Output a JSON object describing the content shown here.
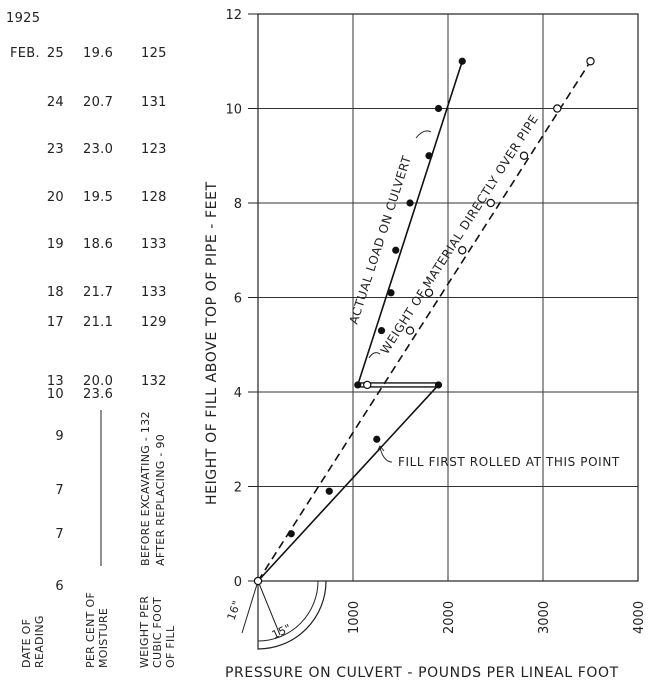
{
  "chart_data": {
    "type": "line",
    "year": "1925",
    "month": "FEB.",
    "xlabel": "PRESSURE ON CULVERT - POUNDS PER LINEAL FOOT",
    "ylabel": "HEIGHT OF FILL ABOVE TOP OF PIPE - FEET",
    "xlim": [
      0,
      4000
    ],
    "ylim": [
      0,
      12
    ],
    "x_ticks": [
      "1000",
      "2000",
      "3000",
      "4000"
    ],
    "y_ticks": [
      "0",
      "2",
      "4",
      "6",
      "8",
      "10",
      "12"
    ],
    "grid": true,
    "series": [
      {
        "name": "ACTUAL LOAD ON CULVERT",
        "marker": "filled",
        "line": "solid",
        "x": [
          0,
          350,
          750,
          1250,
          1900,
          1050,
          1300,
          1400,
          1450,
          1600,
          1800,
          1900,
          2150
        ],
        "y": [
          0,
          1,
          1.9,
          3.0,
          4.15,
          4.15,
          5.3,
          6.1,
          7.0,
          8.0,
          9.0,
          10.0,
          11.0
        ]
      },
      {
        "name": "WEIGHT OF MATERIAL DIRECTLY OVER PIPE",
        "marker": "open",
        "line": "dashed",
        "x": [
          0,
          1150,
          1600,
          1800,
          2150,
          2450,
          2800,
          3150,
          3500
        ],
        "y": [
          0,
          4.15,
          5.3,
          6.1,
          7.0,
          8.0,
          9.0,
          10.0,
          11.0
        ]
      }
    ],
    "horizontal_link": {
      "y": 4.15,
      "x": [
        1050,
        1900
      ]
    },
    "annotations": {
      "fill_first_rolled": "FILL FIRST ROLLED AT THIS POINT",
      "pipe_inner": "16\"",
      "pipe_outer": "15\""
    },
    "table": {
      "headers": {
        "date": [
          "DATE OF",
          "READING"
        ],
        "moisture": [
          "PER CENT OF",
          "MOISTURE"
        ],
        "weight": [
          "WEIGHT PER",
          "CUBIC FOOT",
          "OF FILL"
        ]
      },
      "weight_note": [
        "BEFORE EXCAVATING - 132",
        "AFTER REPLACING - 90"
      ],
      "rows": [
        {
          "date": "25",
          "moisture": "19.6",
          "weight": "125"
        },
        {
          "date": "24",
          "moisture": "20.7",
          "weight": "131"
        },
        {
          "date": "23",
          "moisture": "23.0",
          "weight": "123"
        },
        {
          "date": "20",
          "moisture": "19.5",
          "weight": "128"
        },
        {
          "date": "19",
          "moisture": "18.6",
          "weight": "133"
        },
        {
          "date": "18",
          "moisture": "21.7",
          "weight": "133"
        },
        {
          "date": "17",
          "moisture": "21.1",
          "weight": "129"
        },
        {
          "date": "13",
          "moisture": "20.0",
          "weight": "132"
        },
        {
          "date": "10",
          "moisture": "23.6",
          "weight": ""
        },
        {
          "date": "9",
          "moisture": "",
          "weight": ""
        },
        {
          "date": "7",
          "moisture": "",
          "weight": ""
        },
        {
          "date": "7",
          "moisture": "",
          "weight": ""
        },
        {
          "date": "6",
          "moisture": "",
          "weight": ""
        }
      ]
    }
  }
}
